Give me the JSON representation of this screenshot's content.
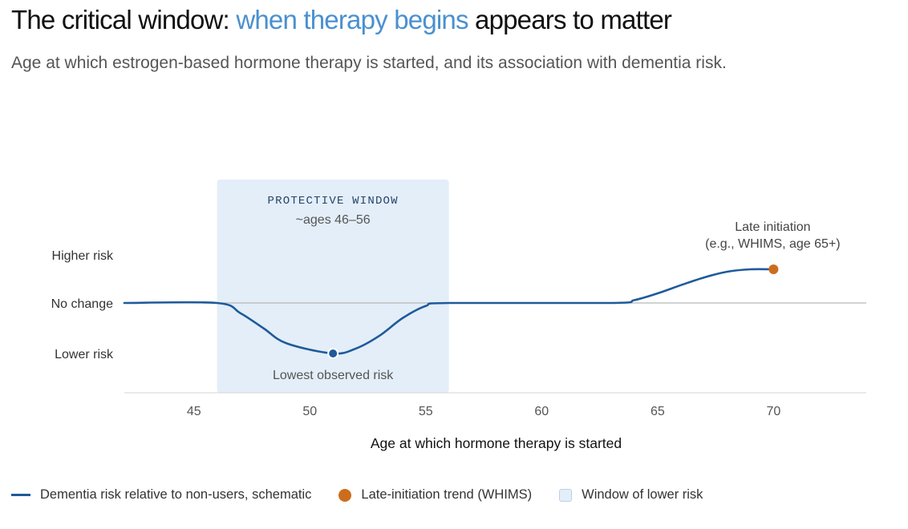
{
  "title": {
    "before": "The critical window: ",
    "highlight": "when therapy begins",
    "after": " appears to matter"
  },
  "subtitle": "Age at which estrogen-based hormone therapy is started, and its association with dementia risk.",
  "colors": {
    "accent": "#4a90d0",
    "line": "#1f5a9a",
    "late": "#cc6d1e",
    "window_fill": "#e3eef8"
  },
  "chart_data": {
    "type": "line",
    "xlabel": "Age at which hormone therapy is started",
    "ylabel": "",
    "xlim": [
      42,
      74
    ],
    "x_ticks": [
      45,
      50,
      55,
      60,
      65,
      70
    ],
    "y_categories": [
      {
        "label": "Higher risk",
        "value": 1
      },
      {
        "label": "No change",
        "value": 0
      },
      {
        "label": "Lower risk",
        "value": -1
      }
    ],
    "series": [
      {
        "name": "Dementia risk relative to non-users, schematic",
        "points": [
          [
            42,
            0
          ],
          [
            46,
            0
          ],
          [
            47,
            -0.2
          ],
          [
            48,
            -0.5
          ],
          [
            49,
            -0.8
          ],
          [
            51,
            -1.0
          ],
          [
            52,
            -0.9
          ],
          [
            53,
            -0.65
          ],
          [
            54,
            -0.3
          ],
          [
            55,
            -0.06
          ],
          [
            56,
            0
          ],
          [
            63,
            0
          ],
          [
            64,
            0.06
          ],
          [
            65,
            0.2
          ],
          [
            66,
            0.37
          ],
          [
            67,
            0.53
          ],
          [
            68,
            0.65
          ],
          [
            69,
            0.7
          ],
          [
            70,
            0.7
          ]
        ]
      }
    ],
    "highlight_window": {
      "x_range": [
        46,
        56
      ],
      "label": "PROTECTIVE WINDOW",
      "sublabel": "~ages 46–56"
    },
    "annotations": [
      {
        "x": 51,
        "y": -1.0,
        "text": "Lowest observed risk",
        "marker": "line"
      },
      {
        "x": 70,
        "y": 0.7,
        "text_lines": [
          "Late initiation",
          "(e.g., WHIMS, age 65+)"
        ],
        "marker": "late"
      }
    ],
    "grid": false
  },
  "legend": {
    "items": [
      {
        "label": "Dementia risk relative to non-users, schematic"
      },
      {
        "label": "Late-initiation trend (WHIMS)"
      },
      {
        "label": "Window of lower risk"
      }
    ]
  }
}
